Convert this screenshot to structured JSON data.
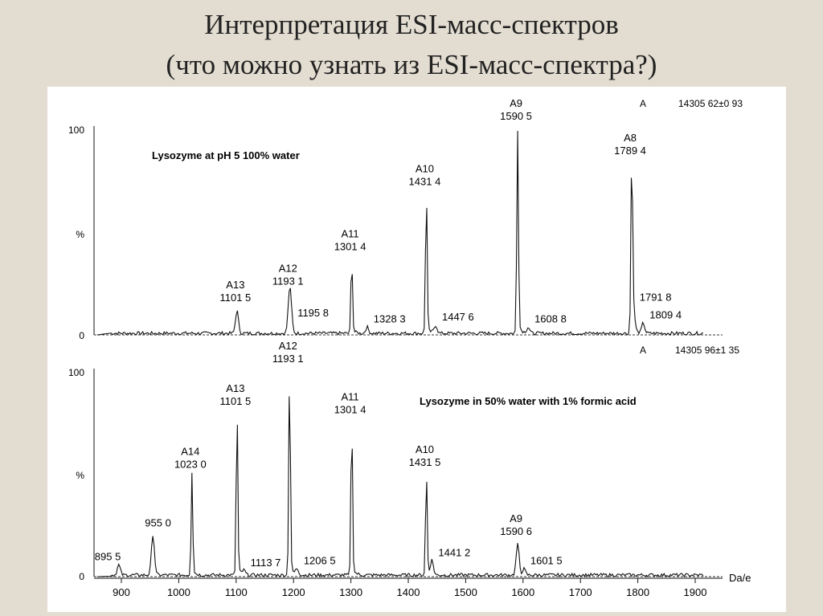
{
  "title": {
    "line1": "Интерпретация ESI-масс-спектров",
    "line2": "(что можно узнать из ESI-масс-спектра?)"
  },
  "chart_data": [
    {
      "type": "line",
      "panel": "top",
      "title": "Lysozyme at pH 5 100% water",
      "ylabel": "%",
      "ylim": [
        0,
        100
      ],
      "y_ticks": [
        "0",
        "100"
      ],
      "xlim": [
        860,
        1920
      ],
      "series_label": "A",
      "mass_annotation": "14305 62±0 93",
      "peaks": [
        {
          "x": 1101.5,
          "y": 11,
          "label": "A13",
          "value": "1101 5"
        },
        {
          "x": 1193.1,
          "y": 19,
          "label": "A12",
          "value": "1193 1"
        },
        {
          "x": 1195.8,
          "y": 6,
          "label": "",
          "value": "1195 8"
        },
        {
          "x": 1301.4,
          "y": 36,
          "label": "A11",
          "value": "1301 4"
        },
        {
          "x": 1328.3,
          "y": 3,
          "label": "",
          "value": "1328 3"
        },
        {
          "x": 1431.4,
          "y": 68,
          "label": "A10",
          "value": "1431 4"
        },
        {
          "x": 1447.6,
          "y": 4,
          "label": "",
          "value": "1447 6"
        },
        {
          "x": 1590.5,
          "y": 100,
          "label": "A9",
          "value": "1590 5"
        },
        {
          "x": 1608.8,
          "y": 3,
          "label": "",
          "value": "1608 8"
        },
        {
          "x": 1789.4,
          "y": 83,
          "label": "A8",
          "value": "1789 4"
        },
        {
          "x": 1791.8,
          "y": 12,
          "label": "",
          "value": "1791 8"
        },
        {
          "x": 1809.4,
          "y": 5,
          "label": "",
          "value": "1809 4"
        }
      ]
    },
    {
      "type": "line",
      "panel": "bottom",
      "title": "Lysozyme in 50% water with 1% formic acid",
      "ylabel": "%",
      "xlabel": "Da/e",
      "ylim": [
        0,
        100
      ],
      "y_ticks": [
        "0",
        "100"
      ],
      "xlim": [
        860,
        1920
      ],
      "x_ticks": [
        900,
        1000,
        1100,
        1200,
        1300,
        1400,
        1500,
        1600,
        1700,
        1800,
        1900
      ],
      "series_label": "A",
      "mass_annotation": "14305 96±1 35",
      "peaks": [
        {
          "x": 895.5,
          "y": 5,
          "label": "",
          "value": "895 5"
        },
        {
          "x": 955.0,
          "y": 20,
          "label": "",
          "value": "955 0"
        },
        {
          "x": 1023.0,
          "y": 48,
          "label": "A14",
          "value": "1023 0"
        },
        {
          "x": 1101.5,
          "y": 79,
          "label": "A13",
          "value": "1101 5"
        },
        {
          "x": 1113.7,
          "y": 2,
          "label": "",
          "value": "1113 7"
        },
        {
          "x": 1193.1,
          "y": 100,
          "label": "A12",
          "value": "1193 1"
        },
        {
          "x": 1206.5,
          "y": 3,
          "label": "",
          "value": "1206 5"
        },
        {
          "x": 1301.4,
          "y": 75,
          "label": "A11",
          "value": "1301 4"
        },
        {
          "x": 1431.5,
          "y": 49,
          "label": "A10",
          "value": "1431 5"
        },
        {
          "x": 1441.2,
          "y": 7,
          "label": "",
          "value": "1441 2"
        },
        {
          "x": 1590.6,
          "y": 15,
          "label": "A9",
          "value": "1590 6"
        },
        {
          "x": 1601.5,
          "y": 3,
          "label": "",
          "value": "1601 5"
        }
      ]
    }
  ]
}
